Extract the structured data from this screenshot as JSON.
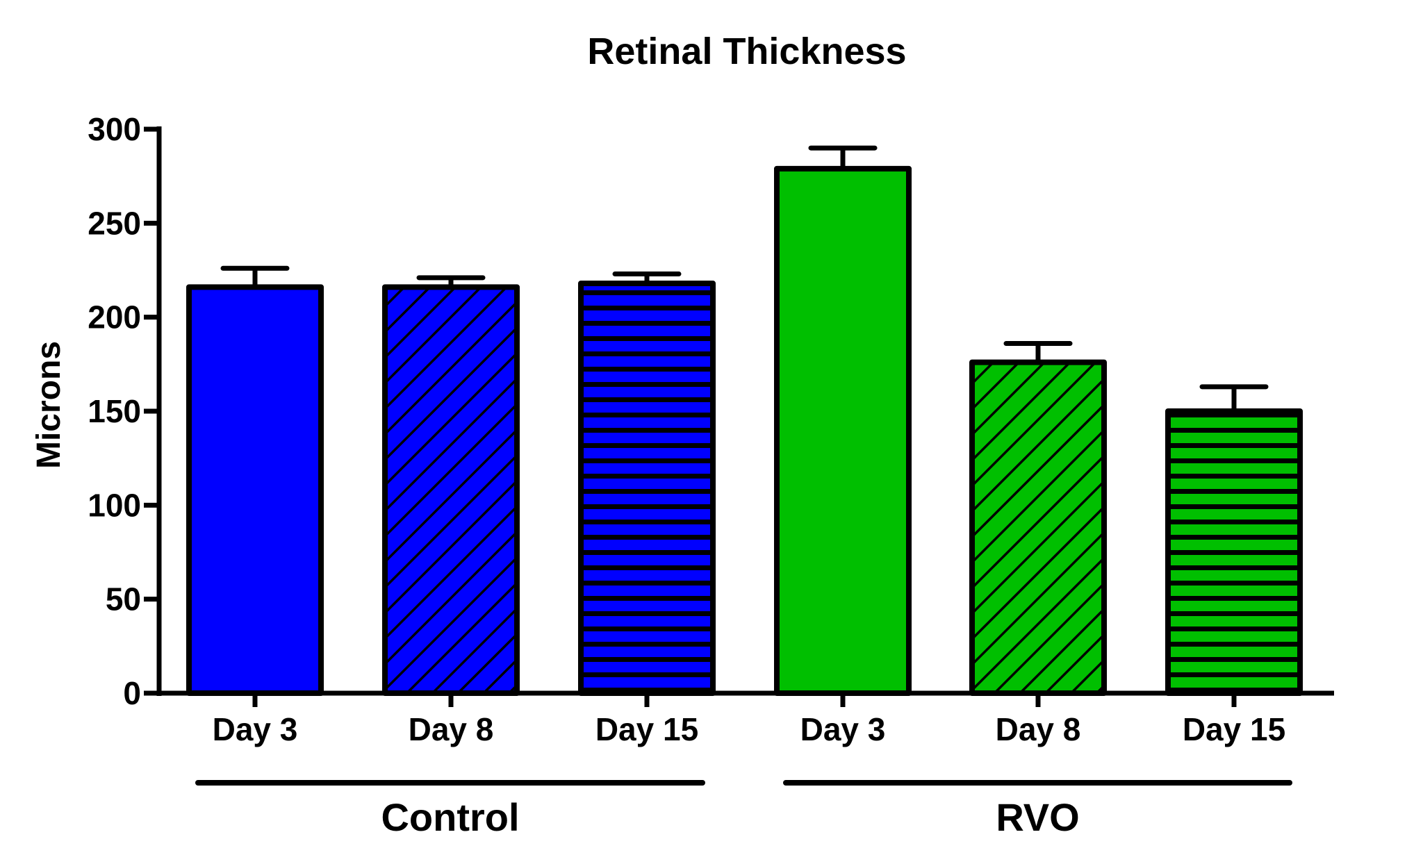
{
  "chart_data": {
    "type": "bar",
    "title": "Retinal Thickness",
    "xlabel": "",
    "ylabel": "Microns",
    "ylim": [
      0,
      300
    ],
    "yticks": [
      0,
      50,
      100,
      150,
      200,
      250,
      300
    ],
    "grid": false,
    "legend": "none",
    "groups": [
      {
        "label": "Control",
        "color": "#0000ff"
      },
      {
        "label": "RVO",
        "color": "#00bf00"
      }
    ],
    "bars": [
      {
        "category": "Day 3",
        "group": "Control",
        "value": 216,
        "error": 10,
        "pattern": "solid"
      },
      {
        "category": "Day 8",
        "group": "Control",
        "value": 216,
        "error": 5,
        "pattern": "diagonal"
      },
      {
        "category": "Day 15",
        "group": "Control",
        "value": 218,
        "error": 5,
        "pattern": "horizontal"
      },
      {
        "category": "Day 3",
        "group": "RVO",
        "value": 279,
        "error": 11,
        "pattern": "solid"
      },
      {
        "category": "Day 8",
        "group": "RVO",
        "value": 176,
        "error": 10,
        "pattern": "diagonal"
      },
      {
        "category": "Day 15",
        "group": "RVO",
        "value": 150,
        "error": 13,
        "pattern": "horizontal"
      }
    ]
  }
}
